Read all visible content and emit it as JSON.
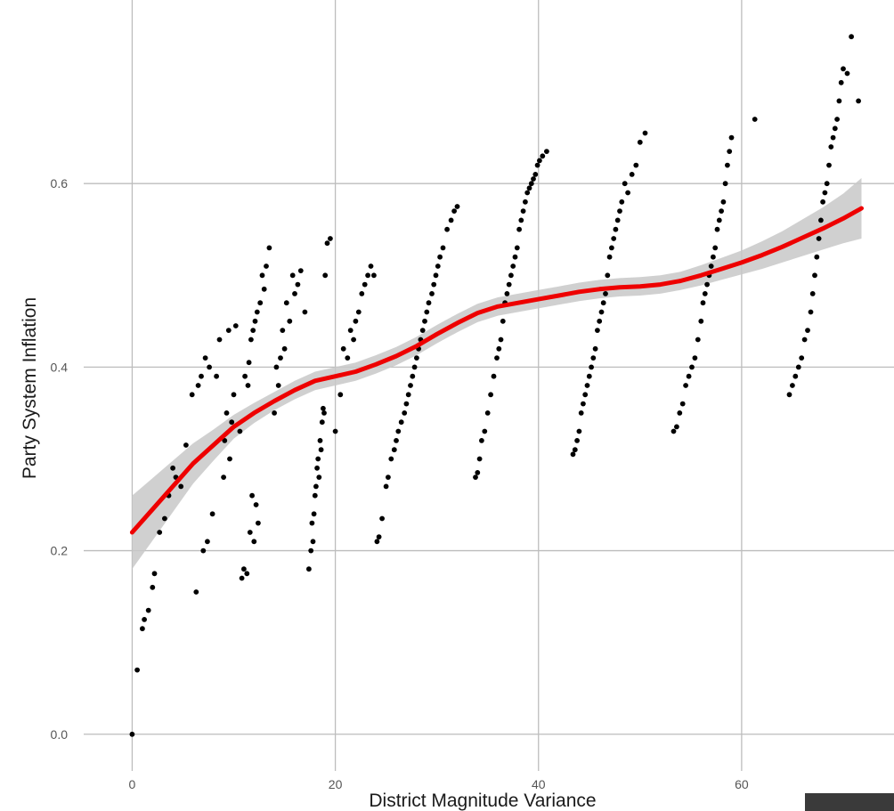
{
  "chart_data": {
    "type": "scatter",
    "title": "",
    "xlabel": "District Magnitude Variance",
    "ylabel": "Party System Inflation",
    "xlim": [
      -6,
      75
    ],
    "ylim": [
      -0.04,
      0.8
    ],
    "x_ticks": [
      0,
      20,
      40,
      60
    ],
    "y_ticks": [
      0.0,
      0.2,
      0.4,
      0.6
    ],
    "x_tick_labels": [
      "0",
      "20",
      "40",
      "60"
    ],
    "y_tick_labels": [
      "0.0",
      "0.2",
      "0.4",
      "0.6"
    ],
    "grid": true,
    "legend": "none",
    "colors": {
      "points": "#000000",
      "smooth_line": "#ee0000",
      "confidence_band": "#c8c8c8",
      "grid": "#bdbdbd"
    },
    "series": [
      {
        "kind": "points",
        "x": [
          0,
          0.5,
          1,
          1.2,
          1.6,
          2,
          2.2,
          2.7,
          3.2,
          3.6,
          4,
          4.3,
          4.8,
          5.3,
          5.9,
          6.3,
          6.5,
          6.8,
          7,
          7.2,
          7.4,
          7.6,
          7.9,
          8.3,
          8.6,
          9,
          9.1,
          9.3,
          9.5,
          9.6,
          9.8,
          10,
          10.2,
          10.6,
          10.8,
          11,
          11.1,
          11.3,
          11.4,
          11.5,
          11.6,
          11.7,
          11.8,
          11.9,
          12,
          12.1,
          12.2,
          12.3,
          12.4,
          12.6,
          12.8,
          13,
          13.2,
          13.5,
          14,
          14.2,
          14.4,
          14.6,
          14.8,
          15,
          15.2,
          15.5,
          15.8,
          16,
          16.3,
          16.6,
          17,
          17.4,
          17.6,
          17.7,
          17.8,
          17.9,
          18,
          18.1,
          18.2,
          18.3,
          18.4,
          18.5,
          18.6,
          18.7,
          18.8,
          18.9,
          19,
          19.2,
          19.5,
          20,
          20.5,
          20.8,
          21.2,
          21.5,
          21.8,
          22,
          22.3,
          22.6,
          22.9,
          23.2,
          23.5,
          23.8,
          24.1,
          24.3,
          24.6,
          25,
          25.2,
          25.5,
          25.8,
          26,
          26.2,
          26.5,
          26.8,
          27,
          27.2,
          27.4,
          27.6,
          27.8,
          28,
          28.2,
          28.4,
          28.6,
          28.8,
          29,
          29.2,
          29.5,
          29.7,
          29.9,
          30.1,
          30.3,
          30.6,
          31,
          31.4,
          31.7,
          32,
          33.8,
          34,
          34.2,
          34.4,
          34.7,
          35,
          35.3,
          35.6,
          35.9,
          36.1,
          36.3,
          36.5,
          36.7,
          36.9,
          37.1,
          37.3,
          37.5,
          37.7,
          37.9,
          38.1,
          38.3,
          38.5,
          38.7,
          38.9,
          39.1,
          39.3,
          39.5,
          39.7,
          39.9,
          40.1,
          40.4,
          40.8,
          43.4,
          43.6,
          43.8,
          44,
          44.2,
          44.4,
          44.6,
          44.8,
          45,
          45.2,
          45.4,
          45.6,
          45.8,
          46,
          46.2,
          46.4,
          46.6,
          46.8,
          47,
          47.2,
          47.4,
          47.6,
          47.8,
          48,
          48.2,
          48.5,
          48.8,
          49.2,
          49.6,
          50,
          50.5,
          53.3,
          53.6,
          53.9,
          54.2,
          54.5,
          54.8,
          55.1,
          55.4,
          55.7,
          56,
          56.2,
          56.4,
          56.6,
          56.8,
          57,
          57.2,
          57.4,
          57.6,
          57.8,
          58,
          58.2,
          58.4,
          58.6,
          58.8,
          59,
          61.3,
          64.7,
          65,
          65.3,
          65.6,
          65.9,
          66.2,
          66.5,
          66.8,
          67,
          67.2,
          67.4,
          67.6,
          67.8,
          68,
          68.2,
          68.4,
          68.6,
          68.8,
          69,
          69.2,
          69.4,
          69.6,
          69.8,
          70,
          70.4,
          70.8,
          71.5
        ],
        "y": [
          0.0,
          0.07,
          0.115,
          0.125,
          0.135,
          0.16,
          0.175,
          0.22,
          0.235,
          0.26,
          0.29,
          0.28,
          0.27,
          0.315,
          0.37,
          0.155,
          0.38,
          0.39,
          0.2,
          0.41,
          0.21,
          0.4,
          0.24,
          0.39,
          0.43,
          0.28,
          0.32,
          0.35,
          0.44,
          0.3,
          0.34,
          0.37,
          0.445,
          0.33,
          0.17,
          0.18,
          0.39,
          0.175,
          0.38,
          0.405,
          0.22,
          0.43,
          0.26,
          0.44,
          0.21,
          0.45,
          0.25,
          0.46,
          0.23,
          0.47,
          0.5,
          0.485,
          0.51,
          0.53,
          0.35,
          0.4,
          0.38,
          0.41,
          0.44,
          0.42,
          0.47,
          0.45,
          0.5,
          0.48,
          0.49,
          0.505,
          0.46,
          0.18,
          0.2,
          0.23,
          0.21,
          0.24,
          0.26,
          0.27,
          0.29,
          0.3,
          0.28,
          0.32,
          0.31,
          0.34,
          0.355,
          0.35,
          0.5,
          0.535,
          0.54,
          0.33,
          0.37,
          0.42,
          0.41,
          0.44,
          0.43,
          0.45,
          0.46,
          0.48,
          0.49,
          0.5,
          0.51,
          0.5,
          0.21,
          0.215,
          0.235,
          0.27,
          0.28,
          0.3,
          0.31,
          0.32,
          0.33,
          0.34,
          0.35,
          0.36,
          0.37,
          0.38,
          0.39,
          0.4,
          0.41,
          0.42,
          0.43,
          0.44,
          0.45,
          0.46,
          0.47,
          0.48,
          0.49,
          0.5,
          0.51,
          0.52,
          0.53,
          0.55,
          0.56,
          0.57,
          0.575,
          0.28,
          0.285,
          0.3,
          0.32,
          0.33,
          0.35,
          0.37,
          0.39,
          0.41,
          0.42,
          0.43,
          0.45,
          0.47,
          0.48,
          0.49,
          0.5,
          0.51,
          0.52,
          0.53,
          0.55,
          0.56,
          0.57,
          0.58,
          0.59,
          0.595,
          0.6,
          0.605,
          0.61,
          0.62,
          0.625,
          0.63,
          0.635,
          0.305,
          0.31,
          0.32,
          0.33,
          0.35,
          0.36,
          0.37,
          0.38,
          0.39,
          0.4,
          0.41,
          0.42,
          0.44,
          0.45,
          0.46,
          0.47,
          0.48,
          0.5,
          0.52,
          0.53,
          0.54,
          0.55,
          0.56,
          0.57,
          0.58,
          0.6,
          0.59,
          0.61,
          0.62,
          0.645,
          0.655,
          0.33,
          0.335,
          0.35,
          0.36,
          0.38,
          0.39,
          0.4,
          0.41,
          0.43,
          0.45,
          0.47,
          0.48,
          0.49,
          0.5,
          0.51,
          0.52,
          0.53,
          0.55,
          0.56,
          0.57,
          0.58,
          0.6,
          0.62,
          0.635,
          0.65,
          0.67,
          0.37,
          0.38,
          0.39,
          0.4,
          0.41,
          0.43,
          0.44,
          0.46,
          0.48,
          0.5,
          0.52,
          0.54,
          0.56,
          0.58,
          0.59,
          0.6,
          0.62,
          0.64,
          0.65,
          0.66,
          0.67,
          0.69,
          0.71,
          0.725,
          0.72,
          0.76,
          0.69
        ]
      },
      {
        "kind": "smooth",
        "x": [
          0,
          2,
          4,
          6,
          8,
          10,
          12,
          14,
          16,
          18,
          20,
          22,
          24,
          26,
          28,
          30,
          32,
          34,
          36,
          38,
          40,
          42,
          44,
          46,
          48,
          50,
          52,
          54,
          56,
          58,
          60,
          62,
          64,
          66,
          68,
          70,
          71.8
        ],
        "y": [
          0.22,
          0.245,
          0.27,
          0.295,
          0.315,
          0.335,
          0.35,
          0.363,
          0.375,
          0.385,
          0.39,
          0.395,
          0.403,
          0.412,
          0.423,
          0.436,
          0.448,
          0.459,
          0.466,
          0.47,
          0.474,
          0.478,
          0.482,
          0.485,
          0.487,
          0.488,
          0.49,
          0.494,
          0.5,
          0.507,
          0.514,
          0.522,
          0.531,
          0.541,
          0.551,
          0.562,
          0.573
        ],
        "se": [
          0.04,
          0.034,
          0.028,
          0.022,
          0.017,
          0.013,
          0.011,
          0.01,
          0.01,
          0.01,
          0.01,
          0.01,
          0.01,
          0.01,
          0.01,
          0.01,
          0.01,
          0.01,
          0.01,
          0.01,
          0.01,
          0.01,
          0.01,
          0.01,
          0.01,
          0.01,
          0.01,
          0.01,
          0.011,
          0.012,
          0.013,
          0.015,
          0.017,
          0.02,
          0.023,
          0.027,
          0.033
        ]
      }
    ]
  }
}
